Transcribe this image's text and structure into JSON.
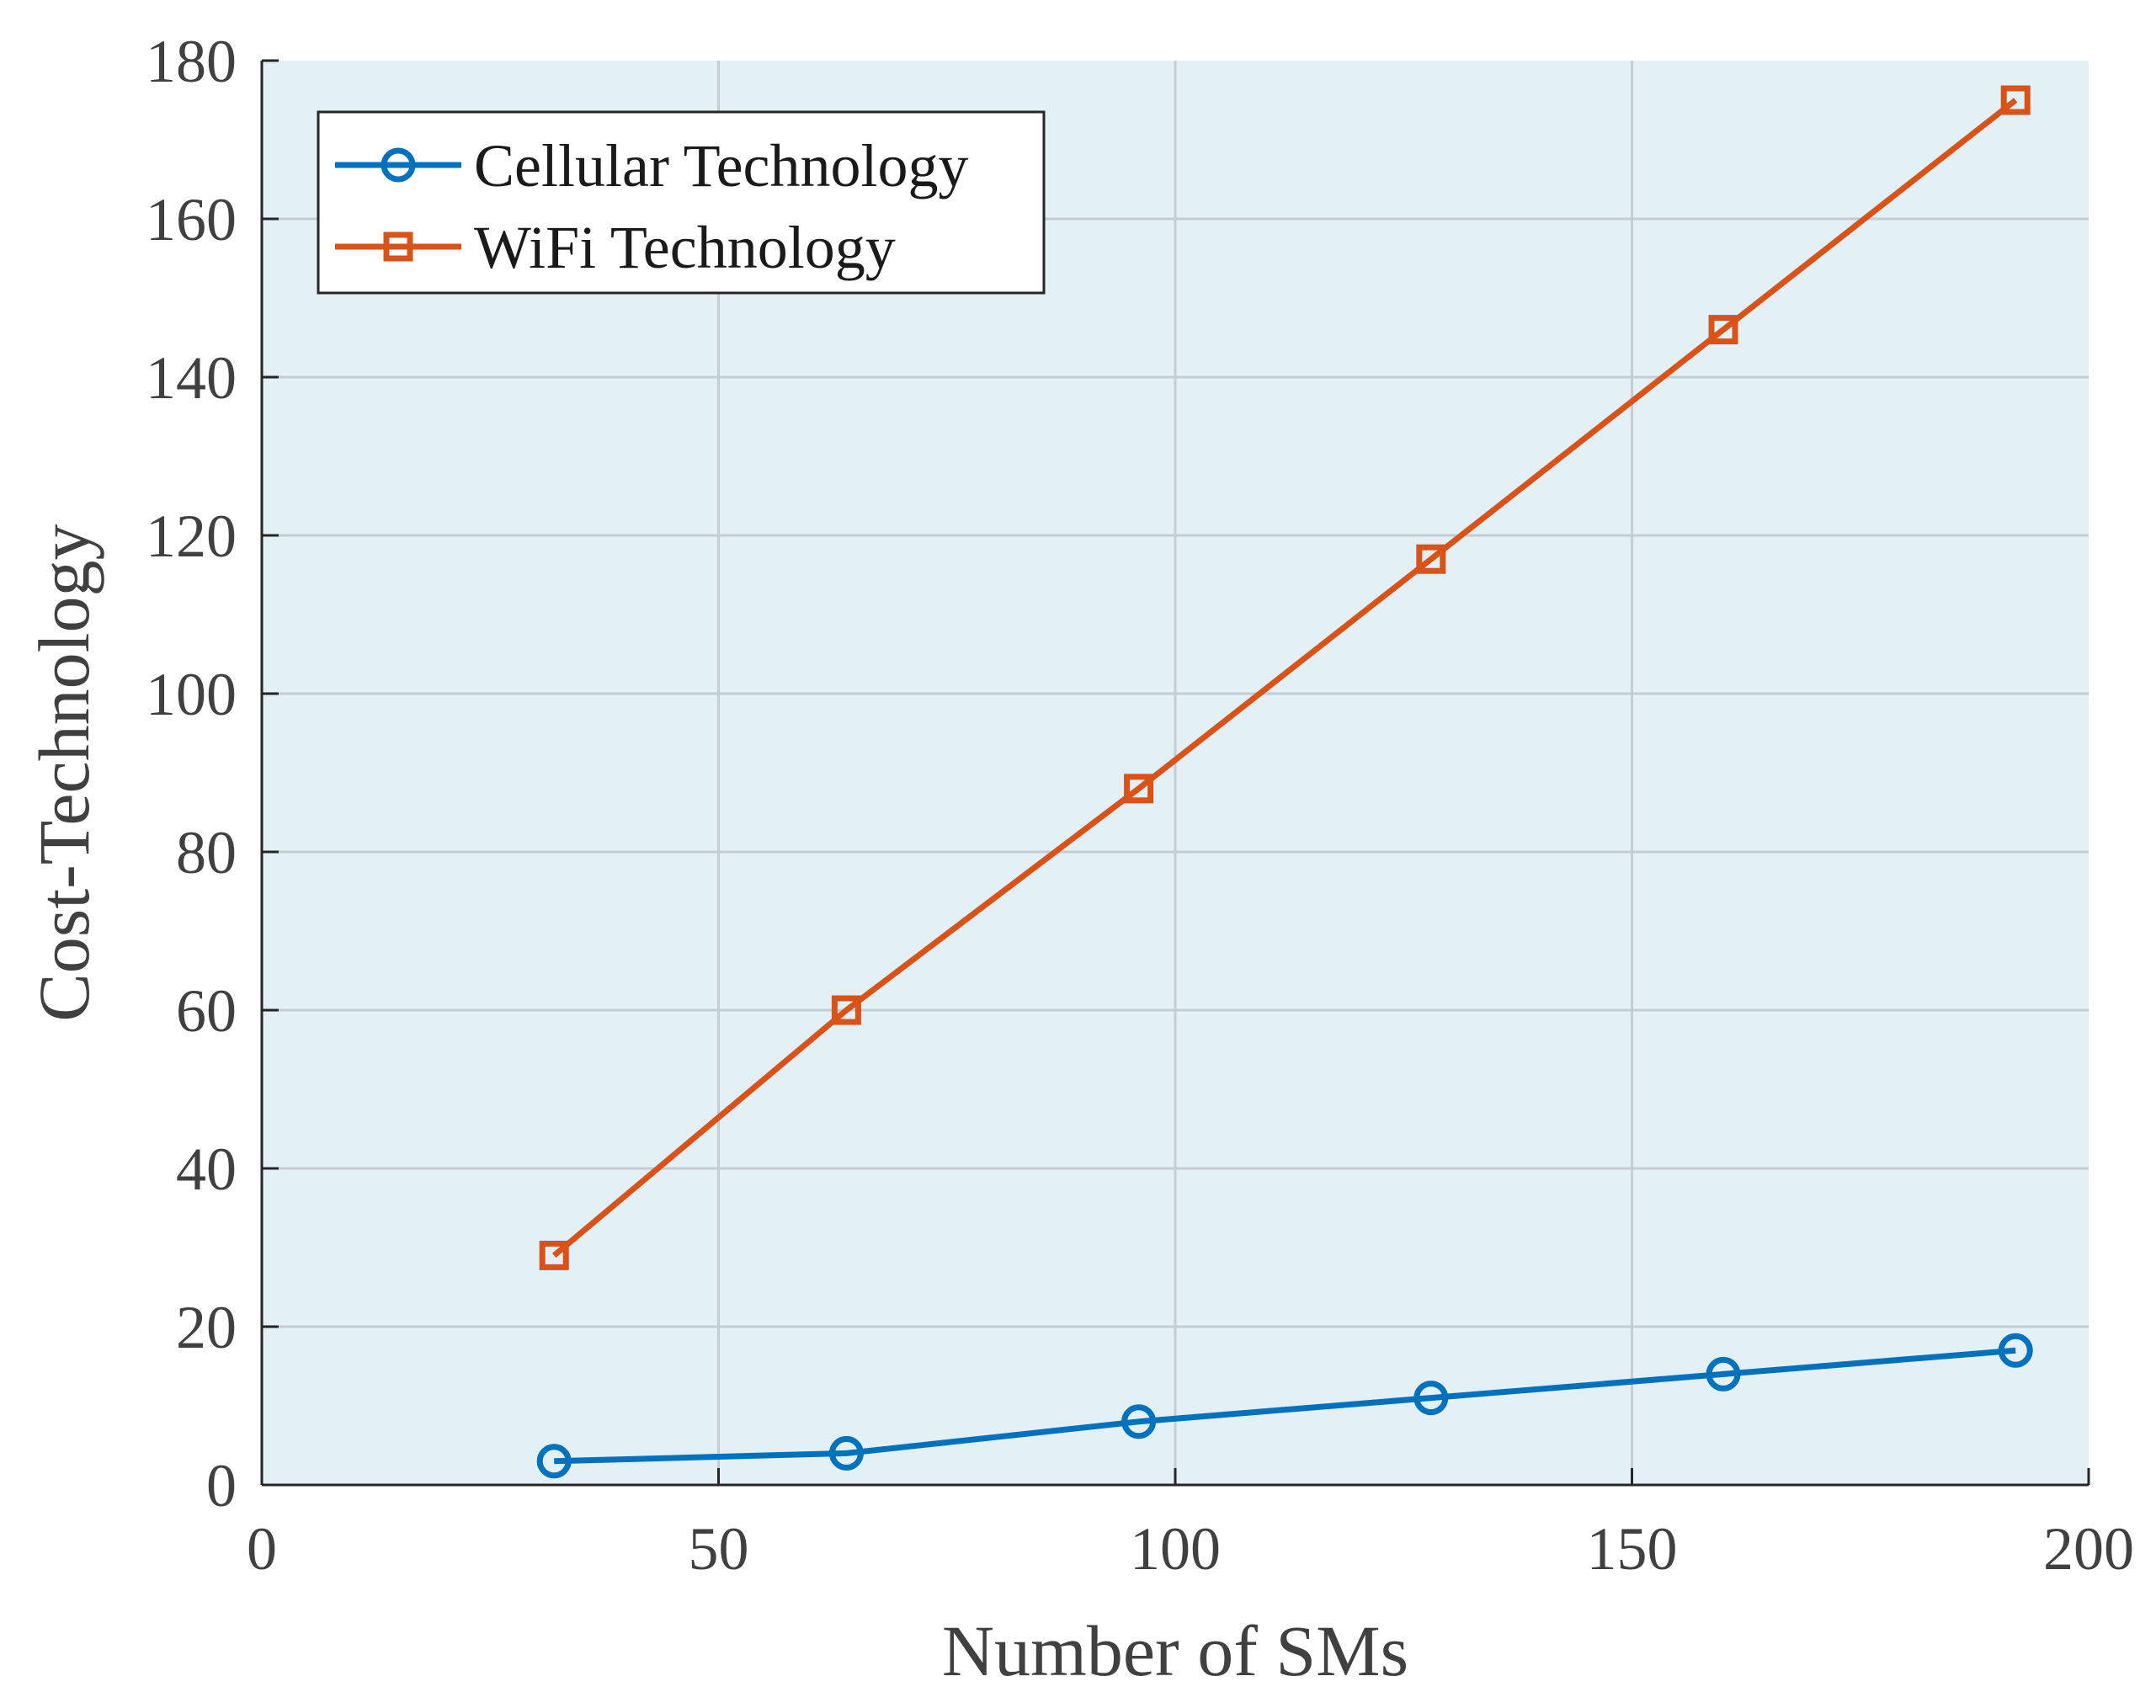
{
  "chart_data": {
    "type": "line",
    "title": "",
    "xlabel": "Number of SMs",
    "ylabel": "Cost-Technology",
    "xlim": [
      0,
      200
    ],
    "ylim": [
      0,
      180
    ],
    "xticks": [
      0,
      50,
      100,
      150,
      200
    ],
    "yticks": [
      0,
      20,
      40,
      60,
      80,
      100,
      120,
      140,
      160,
      180
    ],
    "grid": true,
    "legend_position": "top-left",
    "x": [
      32,
      64,
      96,
      128,
      160,
      192
    ],
    "series": [
      {
        "name": "Cellular Technology",
        "marker": "circle",
        "color": "#0072BD",
        "values": [
          3,
          4,
          8,
          11,
          14,
          17
        ]
      },
      {
        "name": "WiFi Technology",
        "marker": "square",
        "color": "#D95319",
        "values": [
          29,
          60,
          88,
          117,
          146,
          175
        ]
      }
    ],
    "colors": {
      "plot_background": "#E3F0F6",
      "grid": "#C3CDD3",
      "axis": "#262626"
    }
  }
}
